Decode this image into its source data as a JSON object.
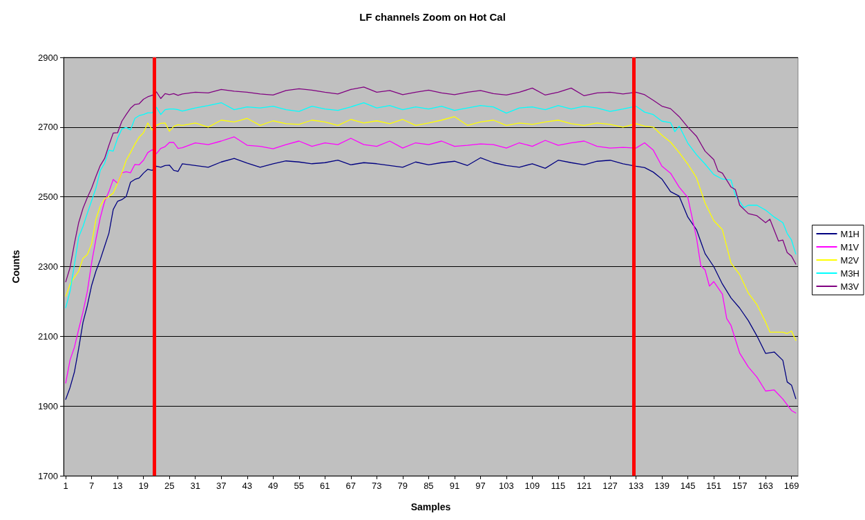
{
  "chart_data": {
    "type": "line",
    "title": "LF channels Zoom on Hot Cal",
    "xlabel": "Samples",
    "ylabel": "Counts",
    "xlim": [
      0.5,
      170.5
    ],
    "xticks": [
      1,
      7,
      13,
      19,
      25,
      31,
      37,
      43,
      49,
      55,
      61,
      67,
      73,
      79,
      85,
      91,
      97,
      103,
      109,
      115,
      121,
      127,
      133,
      139,
      145,
      151,
      157,
      163,
      169
    ],
    "ylim": [
      1700,
      2900
    ],
    "yticks": [
      1700,
      1900,
      2100,
      2300,
      2500,
      2700,
      2900
    ],
    "grid": "y",
    "legend": "right",
    "marker": "none",
    "line_style": "solid",
    "ref_lines": [
      {
        "axis": "x",
        "value": 21.5,
        "color": "#ff0000"
      },
      {
        "axis": "x",
        "value": 132.5,
        "color": "#ff0000"
      }
    ],
    "series": [
      {
        "name": "M1H",
        "color": "#000080",
        "x": [
          1,
          2,
          3,
          4,
          5,
          6,
          7,
          8,
          9,
          10,
          11,
          12,
          13,
          14,
          15,
          16,
          17,
          18,
          19,
          20,
          21,
          22,
          23,
          24,
          25,
          26,
          27,
          28,
          31,
          34,
          37,
          40,
          43,
          46,
          49,
          52,
          55,
          58,
          61,
          64,
          67,
          70,
          73,
          76,
          79,
          82,
          85,
          88,
          91,
          94,
          97,
          100,
          103,
          106,
          109,
          112,
          115,
          118,
          121,
          124,
          127,
          130,
          133,
          135,
          137,
          139,
          141,
          143,
          145,
          147,
          149,
          151,
          153,
          155,
          157,
          159,
          161,
          163,
          165,
          167,
          168,
          169,
          170
        ],
        "values": [
          1919,
          1953,
          1997,
          2065,
          2140,
          2188,
          2246,
          2287,
          2320,
          2358,
          2396,
          2464,
          2487,
          2492,
          2501,
          2542,
          2550,
          2554,
          2568,
          2579,
          2576,
          2588,
          2585,
          2590,
          2591,
          2576,
          2573,
          2595,
          2590,
          2585,
          2600,
          2610,
          2597,
          2585,
          2595,
          2603,
          2600,
          2595,
          2598,
          2605,
          2592,
          2598,
          2595,
          2590,
          2585,
          2600,
          2592,
          2598,
          2602,
          2590,
          2612,
          2598,
          2590,
          2585,
          2595,
          2582,
          2605,
          2598,
          2592,
          2602,
          2605,
          2595,
          2588,
          2584,
          2571,
          2551,
          2515,
          2502,
          2442,
          2406,
          2337,
          2300,
          2250,
          2210,
          2181,
          2145,
          2101,
          2051,
          2055,
          2031,
          1969,
          1960,
          1921
        ]
      },
      {
        "name": "M1V",
        "color": "#ff00ff",
        "x": [
          1,
          2,
          3,
          4,
          5,
          6,
          7,
          8,
          9,
          10,
          11,
          12,
          13,
          14,
          15,
          16,
          17,
          18,
          19,
          20,
          21,
          22,
          23,
          24,
          25,
          26,
          27,
          28,
          31,
          34,
          37,
          40,
          43,
          46,
          49,
          52,
          55,
          58,
          61,
          64,
          67,
          70,
          73,
          76,
          79,
          82,
          85,
          88,
          91,
          94,
          97,
          100,
          103,
          106,
          109,
          112,
          115,
          118,
          121,
          124,
          127,
          130,
          133,
          135,
          137,
          139,
          141,
          143,
          145,
          147,
          148,
          149,
          150,
          151,
          153,
          154,
          155,
          157,
          159,
          161,
          163,
          165,
          167,
          169,
          170
        ],
        "values": [
          1966,
          2032,
          2068,
          2120,
          2170,
          2229,
          2311,
          2379,
          2440,
          2487,
          2515,
          2550,
          2539,
          2569,
          2572,
          2569,
          2593,
          2592,
          2605,
          2627,
          2635,
          2624,
          2639,
          2644,
          2656,
          2656,
          2639,
          2641,
          2655,
          2650,
          2660,
          2672,
          2648,
          2645,
          2638,
          2650,
          2660,
          2645,
          2655,
          2650,
          2668,
          2650,
          2645,
          2660,
          2640,
          2655,
          2650,
          2660,
          2645,
          2648,
          2652,
          2650,
          2640,
          2655,
          2645,
          2662,
          2648,
          2655,
          2660,
          2645,
          2640,
          2642,
          2640,
          2655,
          2634,
          2588,
          2568,
          2528,
          2498,
          2383,
          2303,
          2290,
          2244,
          2257,
          2221,
          2151,
          2131,
          2052,
          2012,
          1983,
          1943,
          1946,
          1920,
          1887,
          1880
        ]
      },
      {
        "name": "M2V",
        "color": "#ffff00",
        "x": [
          1,
          2,
          3,
          4,
          5,
          6,
          7,
          8,
          9,
          10,
          11,
          12,
          13,
          14,
          15,
          16,
          17,
          18,
          19,
          20,
          21,
          22,
          23,
          24,
          25,
          26,
          27,
          28,
          31,
          34,
          37,
          40,
          43,
          46,
          49,
          52,
          55,
          58,
          61,
          64,
          67,
          70,
          73,
          76,
          79,
          82,
          85,
          88,
          91,
          94,
          97,
          100,
          103,
          106,
          109,
          112,
          115,
          118,
          121,
          124,
          127,
          130,
          133,
          135,
          137,
          139,
          141,
          143,
          145,
          147,
          149,
          151,
          153,
          155,
          157,
          159,
          161,
          163,
          164,
          167,
          168,
          169,
          170
        ],
        "values": [
          2215,
          2249,
          2269,
          2287,
          2324,
          2334,
          2365,
          2436,
          2474,
          2494,
          2501,
          2511,
          2539,
          2569,
          2605,
          2627,
          2651,
          2671,
          2684,
          2712,
          2692,
          2705,
          2711,
          2712,
          2688,
          2702,
          2707,
          2705,
          2712,
          2700,
          2720,
          2715,
          2725,
          2705,
          2718,
          2710,
          2708,
          2720,
          2715,
          2705,
          2722,
          2712,
          2718,
          2710,
          2722,
          2705,
          2712,
          2720,
          2730,
          2705,
          2715,
          2720,
          2705,
          2712,
          2708,
          2715,
          2720,
          2710,
          2705,
          2712,
          2708,
          2700,
          2710,
          2703,
          2700,
          2677,
          2657,
          2627,
          2594,
          2555,
          2482,
          2432,
          2406,
          2310,
          2277,
          2224,
          2191,
          2141,
          2112,
          2112,
          2108,
          2115,
          2088
        ]
      },
      {
        "name": "M3H",
        "color": "#00ffff",
        "x": [
          1,
          2,
          3,
          4,
          5,
          6,
          7,
          8,
          9,
          10,
          11,
          12,
          13,
          14,
          15,
          16,
          17,
          18,
          19,
          20,
          21,
          22,
          23,
          24,
          25,
          26,
          27,
          28,
          31,
          34,
          37,
          40,
          43,
          46,
          49,
          52,
          55,
          58,
          61,
          64,
          67,
          70,
          73,
          76,
          79,
          82,
          85,
          88,
          91,
          94,
          97,
          100,
          103,
          106,
          109,
          112,
          115,
          118,
          121,
          124,
          127,
          130,
          133,
          135,
          137,
          139,
          141,
          142,
          143,
          145,
          147,
          149,
          151,
          153,
          155,
          156,
          158,
          159,
          161,
          163,
          165,
          167,
          168,
          169,
          170
        ],
        "values": [
          2182,
          2229,
          2304,
          2385,
          2415,
          2453,
          2489,
          2525,
          2576,
          2596,
          2634,
          2631,
          2668,
          2695,
          2699,
          2692,
          2725,
          2733,
          2736,
          2741,
          2741,
          2757,
          2736,
          2750,
          2752,
          2752,
          2750,
          2746,
          2755,
          2762,
          2770,
          2750,
          2758,
          2755,
          2760,
          2750,
          2745,
          2760,
          2752,
          2748,
          2758,
          2770,
          2755,
          2762,
          2750,
          2758,
          2752,
          2760,
          2748,
          2755,
          2762,
          2758,
          2740,
          2755,
          2758,
          2750,
          2762,
          2752,
          2760,
          2755,
          2745,
          2752,
          2760,
          2743,
          2736,
          2717,
          2713,
          2687,
          2703,
          2654,
          2621,
          2594,
          2564,
          2551,
          2548,
          2505,
          2469,
          2476,
          2476,
          2462,
          2442,
          2426,
          2395,
          2376,
          2336
        ]
      },
      {
        "name": "M3V",
        "color": "#800080",
        "x": [
          1,
          2,
          3,
          4,
          5,
          6,
          7,
          8,
          9,
          10,
          11,
          12,
          13,
          14,
          15,
          16,
          17,
          18,
          19,
          20,
          21,
          22,
          23,
          24,
          25,
          26,
          27,
          28,
          31,
          34,
          37,
          40,
          43,
          46,
          49,
          52,
          55,
          58,
          61,
          64,
          67,
          70,
          73,
          76,
          79,
          82,
          85,
          88,
          91,
          94,
          97,
          100,
          103,
          106,
          109,
          112,
          115,
          118,
          121,
          124,
          127,
          130,
          133,
          135,
          137,
          139,
          141,
          143,
          145,
          147,
          149,
          151,
          152,
          153,
          155,
          156,
          157,
          159,
          161,
          162,
          163,
          164,
          166,
          167,
          168,
          169,
          170
        ],
        "values": [
          2256,
          2297,
          2365,
          2426,
          2467,
          2498,
          2525,
          2559,
          2590,
          2610,
          2648,
          2683,
          2684,
          2717,
          2736,
          2754,
          2765,
          2767,
          2780,
          2787,
          2791,
          2801,
          2782,
          2796,
          2793,
          2796,
          2791,
          2795,
          2800,
          2798,
          2808,
          2803,
          2800,
          2795,
          2792,
          2805,
          2810,
          2806,
          2800,
          2795,
          2808,
          2815,
          2800,
          2805,
          2793,
          2800,
          2806,
          2798,
          2793,
          2800,
          2805,
          2796,
          2792,
          2800,
          2812,
          2792,
          2800,
          2812,
          2790,
          2798,
          2800,
          2795,
          2800,
          2793,
          2777,
          2760,
          2753,
          2730,
          2700,
          2674,
          2631,
          2607,
          2574,
          2568,
          2528,
          2521,
          2476,
          2452,
          2446,
          2436,
          2426,
          2436,
          2373,
          2376,
          2340,
          2330,
          2307
        ]
      }
    ]
  }
}
